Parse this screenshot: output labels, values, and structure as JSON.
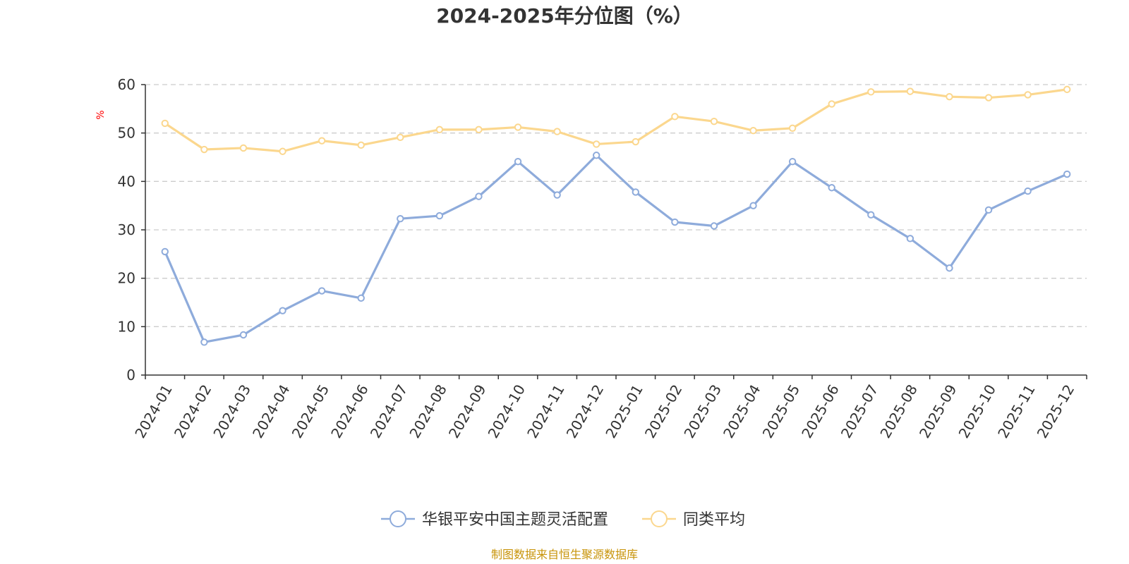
{
  "chart_data": {
    "type": "line",
    "title": "2024-2025年分位图（%）",
    "ylabel": "%",
    "xlabel": "",
    "ylim": [
      0,
      60
    ],
    "yticks": [
      0,
      10,
      20,
      30,
      40,
      50,
      60
    ],
    "grid": true,
    "legend_position": "bottom-center",
    "categories": [
      "2024-01",
      "2024-02",
      "2024-03",
      "2024-04",
      "2024-05",
      "2024-06",
      "2024-07",
      "2024-08",
      "2024-09",
      "2024-10",
      "2024-11",
      "2024-12",
      "2025-01",
      "2025-02",
      "2025-03",
      "2025-04",
      "2025-05",
      "2025-06",
      "2025-07",
      "2025-08",
      "2025-09",
      "2025-10",
      "2025-11",
      "2025-12"
    ],
    "series": [
      {
        "name": "华银平安中国主题灵活配置",
        "color": "#8eabdb",
        "values": [
          25.5,
          6.8,
          8.3,
          13.3,
          17.4,
          15.9,
          32.3,
          32.9,
          36.9,
          44.1,
          37.2,
          45.4,
          37.8,
          31.6,
          30.8,
          35.0,
          44.1,
          38.7,
          33.1,
          28.2,
          22.1,
          34.1,
          38.0,
          41.5
        ]
      },
      {
        "name": "同类平均",
        "color": "#fbd78e",
        "values": [
          52.0,
          46.6,
          46.9,
          46.2,
          48.4,
          47.5,
          49.1,
          50.7,
          50.7,
          51.2,
          50.3,
          47.7,
          48.2,
          53.4,
          52.4,
          50.5,
          51.0,
          56.0,
          58.5,
          58.6,
          57.5,
          57.3,
          57.9,
          59.0
        ]
      }
    ],
    "source_note": "制图数据来自恒生聚源数据库"
  }
}
